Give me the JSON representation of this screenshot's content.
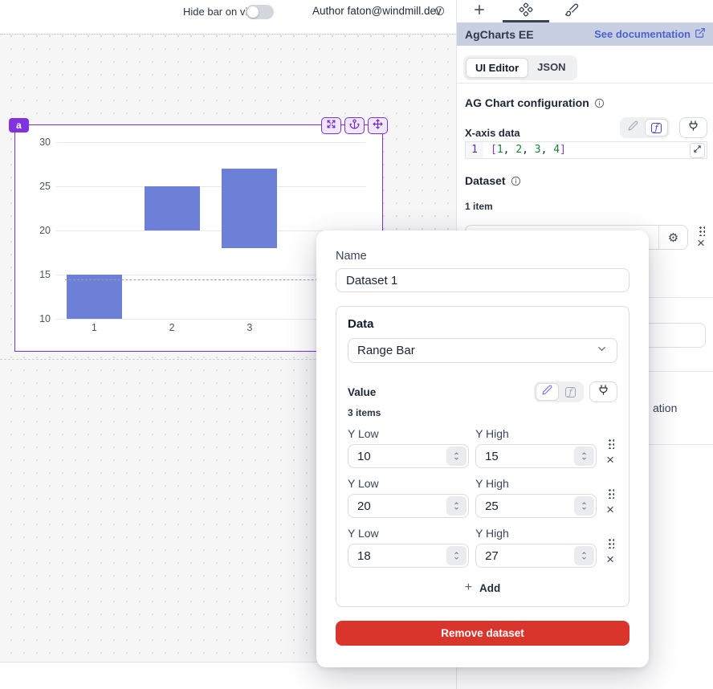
{
  "topbar": {
    "hide_bar_label": "Hide bar on view",
    "hide_bar_toggle_on": false,
    "author_label": "Author faton@windmill.dev"
  },
  "canvas": {
    "component_badge": "a"
  },
  "chart_data": {
    "type": "bar",
    "subtype": "range-bar",
    "x": [
      1,
      2,
      3,
      4
    ],
    "series": [
      {
        "name": "Dataset 1",
        "items": [
          {
            "y_low": 10,
            "y_high": 15
          },
          {
            "y_low": 20,
            "y_high": 25
          },
          {
            "y_low": 18,
            "y_high": 27
          }
        ]
      }
    ],
    "yticks": [
      10,
      15,
      20,
      25,
      30
    ],
    "ylim": [
      10,
      30
    ],
    "xlabel": "",
    "ylabel": "",
    "grid": true,
    "legend": false,
    "bar_color": "#6d80d8",
    "dashed_line_y": 14.5
  },
  "panel": {
    "title": "AgCharts EE",
    "doc_link": "See documentation",
    "tab_ui_editor": "UI Editor",
    "tab_json": "JSON",
    "config_title": "AG Chart configuration",
    "xaxis_label": "X-axis data",
    "code_line_number": "1",
    "code": "[1, 2, 3, 4]",
    "dataset_label": "Dataset",
    "dataset_count": "1 item",
    "occluded_fragment": "ation"
  },
  "modal": {
    "name_label": "Name",
    "name_value": "Dataset 1",
    "data_section_title": "Data",
    "type_value": "Range Bar",
    "value_label": "Value",
    "items_count": "3 items",
    "y_low_label": "Y Low",
    "y_high_label": "Y High",
    "items": [
      {
        "low": "10",
        "high": "15"
      },
      {
        "low": "20",
        "high": "25"
      },
      {
        "low": "18",
        "high": "27"
      }
    ],
    "add_label": "Add",
    "remove_label": "Remove dataset"
  },
  "colors": {
    "accent_purple": "#7d2fe0",
    "bar_blue": "#6d80d8",
    "link_blue": "#4c62ce",
    "danger_red": "#da352c",
    "header_bg": "#c9cfe2"
  }
}
